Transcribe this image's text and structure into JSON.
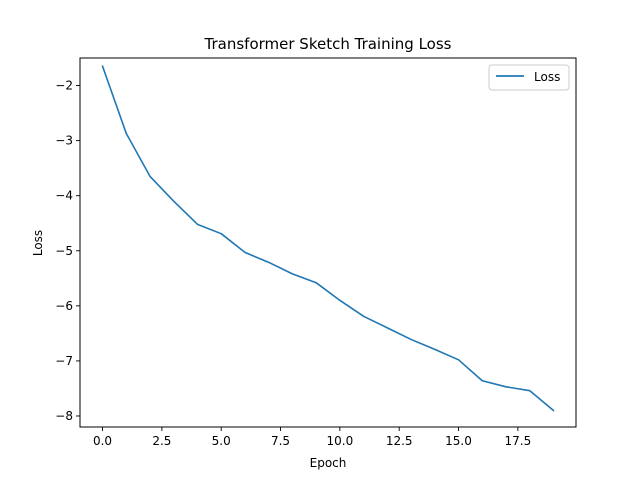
{
  "chart_data": {
    "type": "line",
    "title": "Transformer Sketch Training Loss",
    "xlabel": "Epoch",
    "ylabel": "Loss",
    "xlim": [
      -0.95,
      19.95
    ],
    "ylim": [
      -8.2,
      -1.5
    ],
    "xticks": [
      0.0,
      2.5,
      5.0,
      7.5,
      10.0,
      12.5,
      15.0,
      17.5
    ],
    "xtick_labels": [
      "0.0",
      "2.5",
      "5.0",
      "7.5",
      "10.0",
      "12.5",
      "15.0",
      "17.5"
    ],
    "yticks": [
      -2,
      -3,
      -4,
      -5,
      -6,
      -7,
      -8
    ],
    "ytick_labels": [
      "−2",
      "−3",
      "−4",
      "−5",
      "−6",
      "−7",
      "−8"
    ],
    "grid": false,
    "legend_position": "upper right",
    "series": [
      {
        "name": "Loss",
        "color": "#1f77b4",
        "x": [
          0,
          1,
          2,
          3,
          4,
          5,
          6,
          7,
          8,
          9,
          10,
          11,
          12,
          13,
          14,
          15,
          16,
          17,
          18,
          19
        ],
        "y": [
          -1.65,
          -2.87,
          -3.65,
          -4.1,
          -4.52,
          -4.69,
          -5.03,
          -5.21,
          -5.42,
          -5.58,
          -5.9,
          -6.19,
          -6.4,
          -6.61,
          -6.79,
          -6.98,
          -7.36,
          -7.47,
          -7.54,
          -7.9
        ]
      }
    ]
  }
}
